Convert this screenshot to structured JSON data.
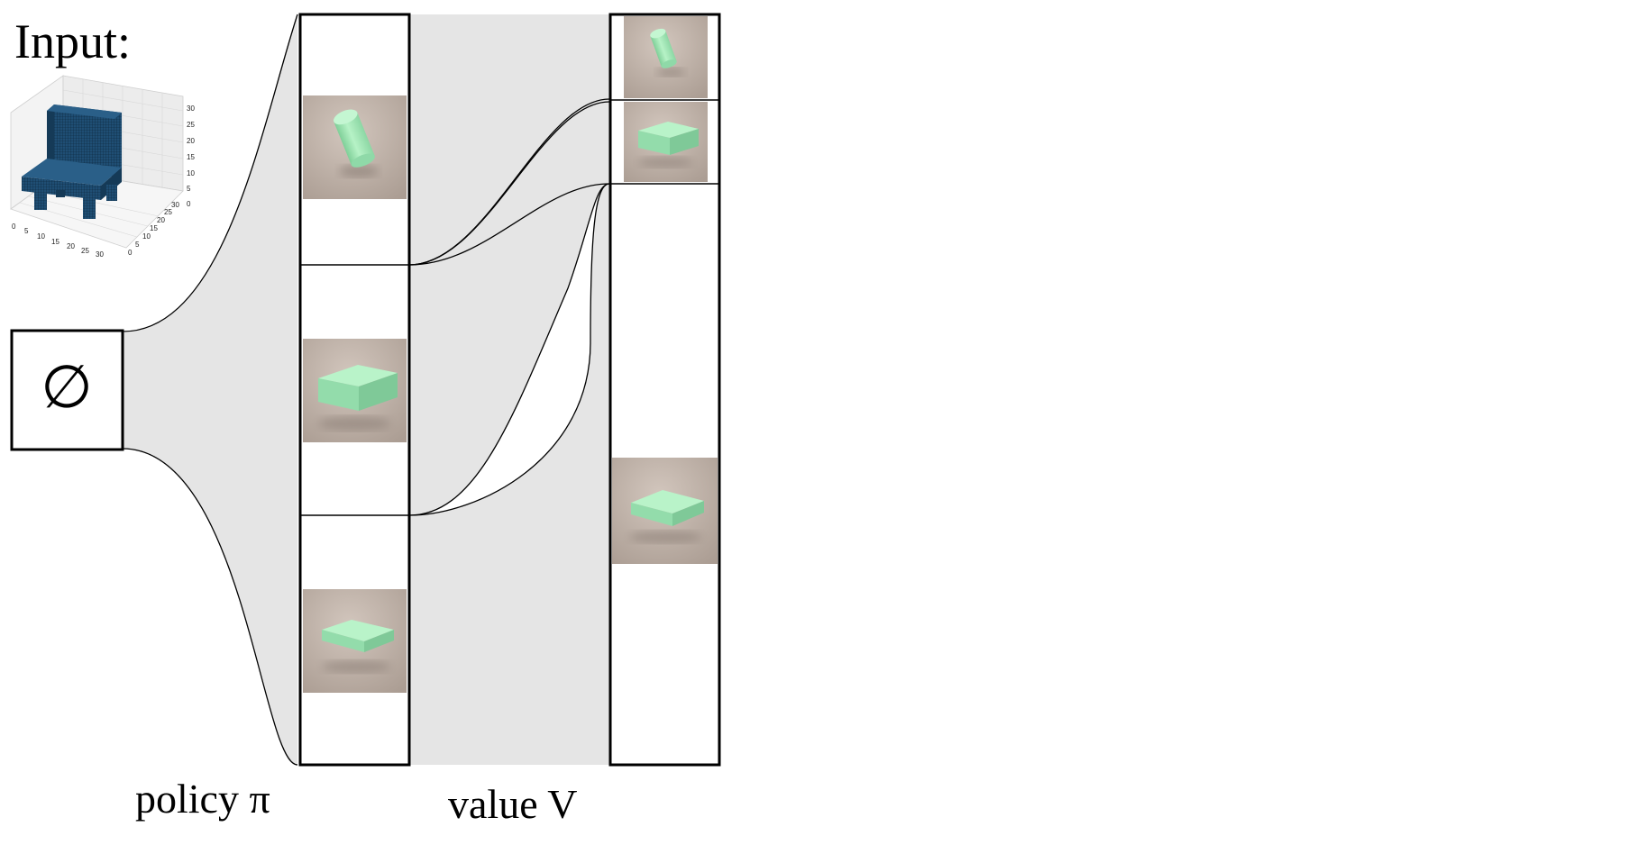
{
  "input_label": "Input:",
  "empty_set_symbol": "∅",
  "policy_label": "policy π",
  "value_label": "value V",
  "voxel_plot": {
    "x_ticks": [
      "0",
      "5",
      "10",
      "15",
      "20",
      "25",
      "30"
    ],
    "y_ticks": [
      "0",
      "5",
      "10",
      "15",
      "20",
      "25",
      "30"
    ],
    "z_ticks": [
      "0",
      "5",
      "10",
      "15",
      "20",
      "25",
      "30"
    ]
  },
  "policy_column_items": [
    "cylinder-render",
    "box-render",
    "flat-slab-render"
  ],
  "value_column_items": [
    "cylinder-render",
    "box-render",
    "flat-slab-render"
  ],
  "colors": {
    "flow_fill": "#e5e5e5",
    "render_bg": "#bcaea4",
    "shape_green": "#a8ecb8",
    "voxel_blue": "#1f4e74"
  }
}
